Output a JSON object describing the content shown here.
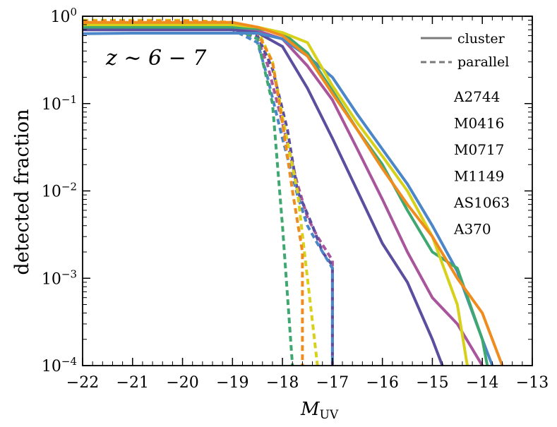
{
  "chart_data": {
    "type": "line",
    "title": "",
    "annotation": {
      "text": "z ∼ 6 − 7"
    },
    "xlabel": {
      "main": "M",
      "sub": "UV"
    },
    "ylabel": "detected fraction",
    "xlim": [
      -22,
      -13
    ],
    "ylim": [
      0.0001,
      1
    ],
    "yscale": "log",
    "xticks": [
      -22,
      -21,
      -20,
      -19,
      -18,
      -17,
      -16,
      -15,
      -14,
      -13
    ],
    "xtick_labels": [
      "−22",
      "−21",
      "−20",
      "−19",
      "−18",
      "−17",
      "−16",
      "−15",
      "−14",
      "−13"
    ],
    "yticks": [
      {
        "value": 1,
        "base": "10",
        "exp": "0"
      },
      {
        "value": 0.1,
        "base": "10",
        "exp": "−1"
      },
      {
        "value": 0.01,
        "base": "10",
        "exp": "−2"
      },
      {
        "value": 0.001,
        "base": "10",
        "exp": "−3"
      },
      {
        "value": 0.0001,
        "base": "10",
        "exp": "−4"
      }
    ],
    "style_legend": [
      {
        "label": "cluster",
        "dash": "solid",
        "color": "#7a7a7a"
      },
      {
        "label": "parallel",
        "dash": "dashed",
        "color": "#7a7a7a"
      }
    ],
    "series": [
      {
        "name": "A2744",
        "color": "#a8559b",
        "cluster": [
          [
            -22,
            0.72
          ],
          [
            -21,
            0.72
          ],
          [
            -20,
            0.72
          ],
          [
            -19,
            0.72
          ],
          [
            -18.5,
            0.68
          ],
          [
            -18,
            0.55
          ],
          [
            -17.5,
            0.27
          ],
          [
            -17,
            0.11
          ],
          [
            -16.5,
            0.03
          ],
          [
            -16,
            0.008
          ],
          [
            -15.5,
            0.002
          ],
          [
            -15,
            0.0006
          ],
          [
            -14.5,
            0.0003
          ],
          [
            -14,
            0.0001
          ]
        ],
        "parallel": [
          [
            -22,
            0.78
          ],
          [
            -21,
            0.78
          ],
          [
            -20,
            0.78
          ],
          [
            -19,
            0.74
          ],
          [
            -18.5,
            0.55
          ],
          [
            -18.3,
            0.28
          ],
          [
            -18,
            0.06
          ],
          [
            -17.7,
            0.012
          ],
          [
            -17.5,
            0.005
          ],
          [
            -17.3,
            0.003
          ],
          [
            -17,
            0.0016
          ],
          [
            -17,
            0.0001
          ]
        ]
      },
      {
        "name": "M0416",
        "color": "#5b4e9f",
        "cluster": [
          [
            -22,
            0.7
          ],
          [
            -21,
            0.7
          ],
          [
            -20,
            0.7
          ],
          [
            -19,
            0.7
          ],
          [
            -18.5,
            0.65
          ],
          [
            -18,
            0.45
          ],
          [
            -17.5,
            0.15
          ],
          [
            -17,
            0.04
          ],
          [
            -16.5,
            0.01
          ],
          [
            -16,
            0.0025
          ],
          [
            -15.5,
            0.0009
          ],
          [
            -15,
            0.0002
          ],
          [
            -14.8,
            0.0001
          ]
        ],
        "parallel": [
          [
            -22,
            0.8
          ],
          [
            -21,
            0.8
          ],
          [
            -20,
            0.8
          ],
          [
            -19,
            0.76
          ],
          [
            -18.5,
            0.6
          ],
          [
            -18.2,
            0.25
          ],
          [
            -17.9,
            0.05
          ],
          [
            -17.7,
            0.01
          ],
          [
            -17.4,
            0.004
          ],
          [
            -17.2,
            0.002
          ],
          [
            -17,
            0.0014
          ],
          [
            -17,
            0.0001
          ]
        ]
      },
      {
        "name": "M0717",
        "color": "#4a86c8",
        "cluster": [
          [
            -22,
            0.63
          ],
          [
            -21,
            0.64
          ],
          [
            -20,
            0.64
          ],
          [
            -19,
            0.64
          ],
          [
            -18.5,
            0.64
          ],
          [
            -18,
            0.55
          ],
          [
            -17.5,
            0.35
          ],
          [
            -17,
            0.2
          ],
          [
            -16.5,
            0.075
          ],
          [
            -16,
            0.03
          ],
          [
            -15.5,
            0.012
          ],
          [
            -15,
            0.004
          ],
          [
            -14.5,
            0.0012
          ],
          [
            -14,
            0.0002
          ],
          [
            -13.8,
            0.0001
          ]
        ],
        "parallel": [
          [
            -22,
            0.72
          ],
          [
            -21,
            0.72
          ],
          [
            -20,
            0.72
          ],
          [
            -19,
            0.7
          ],
          [
            -18.5,
            0.5
          ],
          [
            -18.3,
            0.2
          ],
          [
            -18,
            0.04
          ],
          [
            -17.7,
            0.009
          ],
          [
            -17.5,
            0.004
          ],
          [
            -17.3,
            0.0025
          ],
          [
            -17,
            0.0013
          ],
          [
            -17,
            0.0001
          ]
        ]
      },
      {
        "name": "M1149",
        "color": "#3fa870",
        "cluster": [
          [
            -22,
            0.75
          ],
          [
            -21,
            0.75
          ],
          [
            -20,
            0.75
          ],
          [
            -19,
            0.75
          ],
          [
            -18.5,
            0.72
          ],
          [
            -18,
            0.65
          ],
          [
            -17.5,
            0.38
          ],
          [
            -17,
            0.14
          ],
          [
            -16.5,
            0.05
          ],
          [
            -16,
            0.02
          ],
          [
            -15.5,
            0.006
          ],
          [
            -15,
            0.002
          ],
          [
            -14.5,
            0.0013
          ],
          [
            -14,
            0.0002
          ],
          [
            -13.9,
            0.0001
          ]
        ],
        "parallel": [
          [
            -22,
            0.85
          ],
          [
            -21,
            0.85
          ],
          [
            -20,
            0.85
          ],
          [
            -19,
            0.75
          ],
          [
            -18.5,
            0.55
          ],
          [
            -18.2,
            0.1
          ],
          [
            -18,
            0.004
          ],
          [
            -17.8,
            0.0001
          ]
        ]
      },
      {
        "name": "AS1063",
        "color": "#d8d11a",
        "cluster": [
          [
            -22,
            0.8
          ],
          [
            -21,
            0.8
          ],
          [
            -20,
            0.8
          ],
          [
            -19,
            0.8
          ],
          [
            -18.5,
            0.75
          ],
          [
            -18,
            0.65
          ],
          [
            -17.5,
            0.5
          ],
          [
            -17,
            0.16
          ],
          [
            -16.5,
            0.06
          ],
          [
            -16,
            0.025
          ],
          [
            -15.5,
            0.01
          ],
          [
            -15,
            0.003
          ],
          [
            -14.5,
            0.0005
          ],
          [
            -14.3,
            0.0001
          ]
        ],
        "parallel": [
          [
            -22,
            0.9
          ],
          [
            -21,
            0.9
          ],
          [
            -20,
            0.9
          ],
          [
            -19,
            0.85
          ],
          [
            -18.5,
            0.7
          ],
          [
            -18.2,
            0.3
          ],
          [
            -18,
            0.07
          ],
          [
            -17.7,
            0.01
          ],
          [
            -17.5,
            0.001
          ],
          [
            -17.3,
            0.0001
          ]
        ]
      },
      {
        "name": "A370",
        "color": "#f08c1e",
        "cluster": [
          [
            -22,
            0.85
          ],
          [
            -21,
            0.85
          ],
          [
            -20,
            0.85
          ],
          [
            -19,
            0.85
          ],
          [
            -18.5,
            0.75
          ],
          [
            -18,
            0.6
          ],
          [
            -17.5,
            0.35
          ],
          [
            -17,
            0.13
          ],
          [
            -16.5,
            0.05
          ],
          [
            -16,
            0.018
          ],
          [
            -15.5,
            0.007
          ],
          [
            -15,
            0.003
          ],
          [
            -14.5,
            0.001
          ],
          [
            -14,
            0.0004
          ],
          [
            -13.6,
            0.0001
          ]
        ],
        "parallel": [
          [
            -22,
            0.88
          ],
          [
            -21,
            0.88
          ],
          [
            -20,
            0.88
          ],
          [
            -19,
            0.85
          ],
          [
            -18.5,
            0.65
          ],
          [
            -18.2,
            0.3
          ],
          [
            -18,
            0.06
          ],
          [
            -17.8,
            0.01
          ],
          [
            -17.6,
            0.002
          ],
          [
            -17.6,
            0.0001
          ]
        ]
      }
    ]
  }
}
